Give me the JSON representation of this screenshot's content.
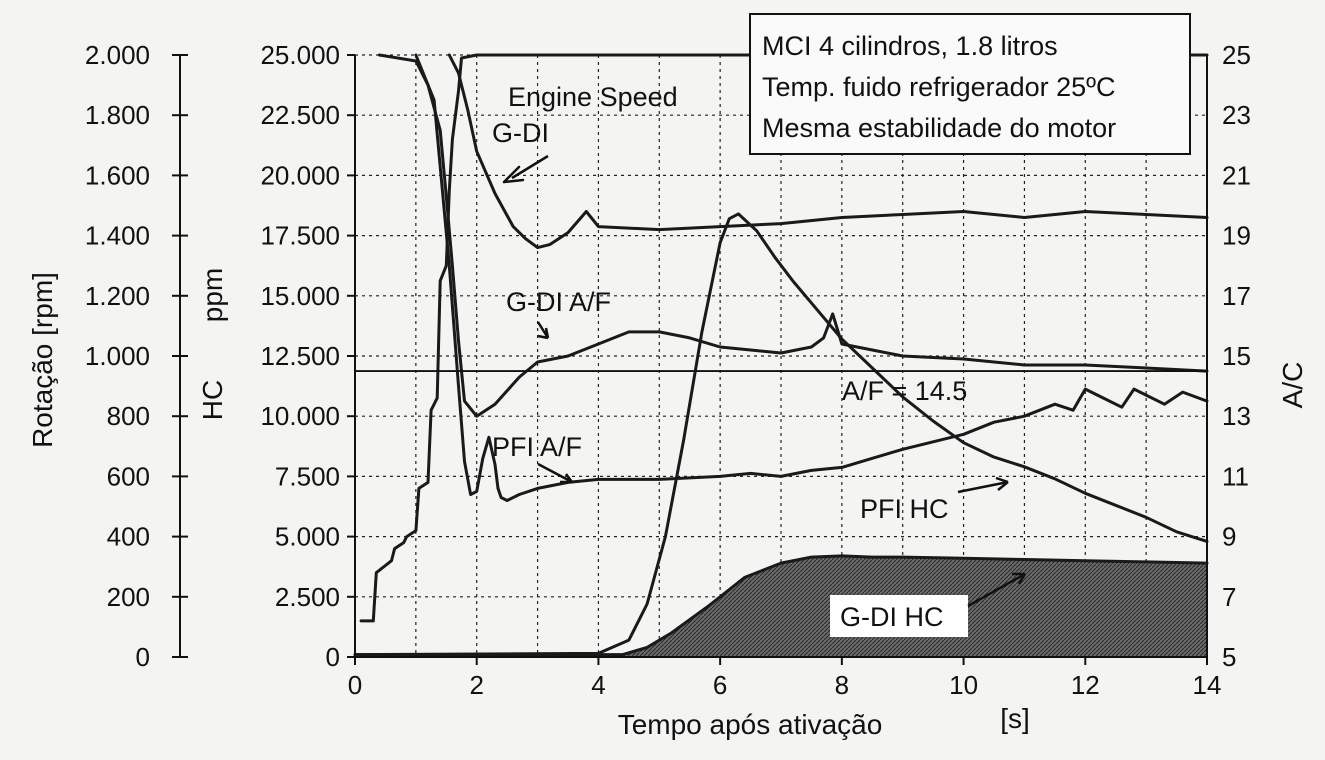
{
  "chart_data": {
    "type": "line",
    "title": "",
    "xlabel": "Tempo após ativação",
    "xunit": "[s]",
    "xlim": [
      0,
      14
    ],
    "x_ticks": [
      0,
      2,
      4,
      6,
      8,
      10,
      12,
      14
    ],
    "grid": true,
    "axes": {
      "rpm": {
        "label": "Rotação [rpm]",
        "range": [
          0,
          2000
        ],
        "tick_labels": [
          "0",
          "200",
          "400",
          "600",
          "800",
          "1.000",
          "1.200",
          "1.400",
          "1.600",
          "1.800",
          "2.000"
        ]
      },
      "hc": {
        "label": "HC",
        "unit": "ppm",
        "range": [
          0,
          25000
        ],
        "tick_labels": [
          "0",
          "2.500",
          "5.000",
          "7.500",
          "10.000",
          "12.500",
          "15.000",
          "17.500",
          "20.000",
          "22.500",
          "25.000"
        ]
      },
      "af": {
        "label": "A/C",
        "range": [
          5,
          25
        ],
        "tick_labels": [
          "5",
          "7",
          "9",
          "11",
          "13",
          "15",
          "17",
          "19",
          "21",
          "23",
          "25"
        ]
      }
    },
    "legend_box": [
      "MCI 4 cilindros, 1.8 litros",
      "Temp. fuido refrigerador 25ºC",
      "Mesma estabilidade do motor"
    ],
    "reference_line": {
      "label": "A/F = 14.5",
      "axis": "af",
      "value": 14.5
    },
    "annotations": {
      "engine_speed": "Engine Speed",
      "gdi": "G-DI",
      "gdi_af": "G-DI A/F",
      "pfi_af": "PFI A/F",
      "pfi_hc": "PFI HC",
      "gdi_hc": "G-DI HC"
    },
    "series": [
      {
        "axis": "rpm",
        "x": [
          0.1,
          0.3,
          0.35,
          0.6,
          0.65,
          0.8,
          0.85,
          1.0,
          1.05,
          1.2,
          1.25,
          1.35,
          1.4,
          1.5,
          1.55,
          1.6,
          1.7,
          1.75,
          2.0,
          3.0,
          4.0,
          6.0,
          8.0,
          10.0,
          12.0,
          14.0
        ],
        "values": [
          120,
          120,
          280,
          320,
          360,
          380,
          400,
          420,
          560,
          580,
          820,
          860,
          1250,
          1300,
          1550,
          1720,
          1880,
          1990,
          2000,
          2000,
          2000,
          2000,
          2000,
          2000,
          2000,
          2000
        ]
      },
      {
        "axis": "hc",
        "x": [
          0,
          4.4,
          4.8,
          5.2,
          5.8,
          6.4,
          7.0,
          7.5,
          8.0,
          8.5,
          9.0,
          10.0,
          11.0,
          12.0,
          13.0,
          14.0
        ],
        "values": [
          100,
          100,
          400,
          1000,
          2100,
          3300,
          3900,
          4150,
          4200,
          4150,
          4150,
          4100,
          4050,
          4000,
          3950,
          3900
        ]
      },
      {
        "axis": "hc",
        "x": [
          0,
          4.0,
          4.5,
          4.8,
          5.1,
          5.4,
          5.7,
          6.0,
          6.15,
          6.3,
          6.6,
          6.9,
          7.2,
          7.6,
          8.0,
          8.5,
          9.0,
          9.5,
          10.0,
          10.5,
          11.0,
          11.5,
          12.0,
          12.5,
          13.0,
          13.5,
          14.0
        ],
        "values": [
          100,
          150,
          700,
          2200,
          5000,
          9000,
          13500,
          17200,
          18200,
          18400,
          17700,
          16600,
          15600,
          14400,
          13200,
          12000,
          10800,
          9800,
          8900,
          8300,
          7900,
          7400,
          6800,
          6300,
          5800,
          5200,
          4800
        ]
      },
      {
        "axis": "af",
        "x": [
          1.0,
          1.3,
          1.55,
          1.7,
          1.8,
          1.9,
          2.0,
          2.1,
          2.2,
          2.3,
          2.35,
          2.4,
          2.5,
          2.7,
          3.0,
          3.5,
          4.0,
          5.0,
          6.0,
          6.5,
          7.0,
          7.5,
          8.0,
          8.5,
          9.0,
          10.0,
          10.5,
          11.0,
          11.5,
          11.8,
          12.0,
          12.3,
          12.6,
          12.8,
          13.0,
          13.3,
          13.6,
          14.0
        ],
        "values": [
          25,
          23.5,
          18,
          14,
          11.5,
          10.4,
          10.5,
          11.6,
          12.3,
          11.4,
          10.6,
          10.3,
          10.2,
          10.4,
          10.6,
          10.8,
          10.9,
          10.9,
          11.0,
          11.1,
          11.0,
          11.2,
          11.3,
          11.6,
          11.9,
          12.4,
          12.8,
          13.0,
          13.4,
          13.2,
          13.9,
          13.6,
          13.3,
          13.9,
          13.7,
          13.4,
          13.8,
          13.5
        ]
      },
      {
        "axis": "af",
        "x": [
          0.4,
          1.0,
          1.2,
          1.4,
          1.5,
          1.6,
          1.7,
          1.8,
          2.0,
          2.3,
          2.7,
          3.0,
          3.5,
          4.0,
          4.5,
          5.0,
          5.5,
          6.0,
          6.5,
          7.0,
          7.5,
          7.7,
          7.85,
          8.0,
          8.5,
          9.0,
          10.0,
          11.0,
          12.0,
          13.0,
          14.0
        ],
        "values": [
          25,
          24.8,
          24.0,
          22.5,
          20.3,
          18.0,
          15.5,
          13.5,
          13.0,
          13.4,
          14.3,
          14.8,
          15.0,
          15.4,
          15.8,
          15.8,
          15.6,
          15.3,
          15.2,
          15.1,
          15.3,
          15.6,
          16.4,
          15.4,
          15.2,
          15.0,
          14.9,
          14.7,
          14.7,
          14.6,
          14.5
        ]
      },
      {
        "axis": "af",
        "x": [
          1.55,
          1.7,
          1.85,
          2.0,
          2.3,
          2.6,
          2.8,
          3.0,
          3.2,
          3.5,
          3.8,
          4.0,
          5.0,
          6.0,
          7.0,
          8.0,
          9.0,
          10.0,
          11.0,
          12.0,
          13.0,
          14.0
        ],
        "values": [
          25,
          24.4,
          23.2,
          21.8,
          20.4,
          19.3,
          18.9,
          18.6,
          18.7,
          19.1,
          19.8,
          19.3,
          19.2,
          19.3,
          19.4,
          19.6,
          19.7,
          19.8,
          19.6,
          19.8,
          19.7,
          19.6
        ]
      }
    ]
  }
}
